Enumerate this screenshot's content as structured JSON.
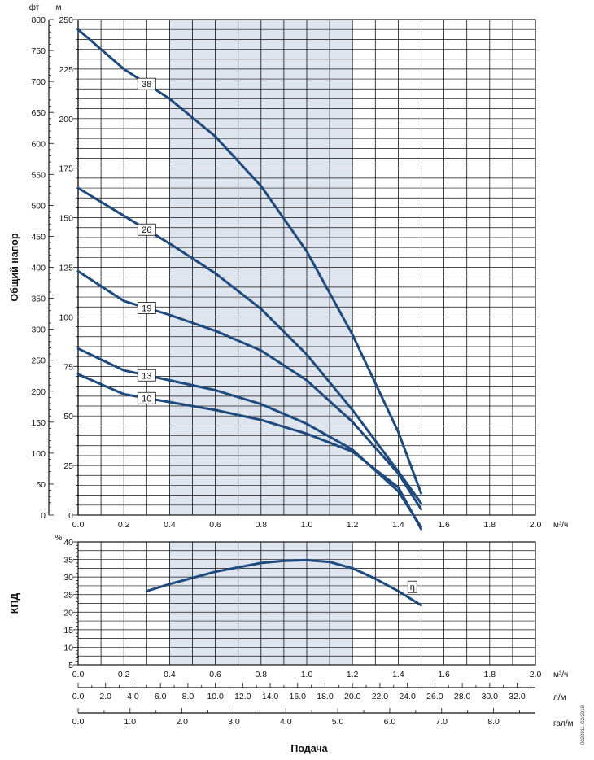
{
  "colors": {
    "curve": "#1f4a7e",
    "band": "#dfe5ee",
    "grid": "#111111"
  },
  "footer": {
    "xlabel": "Подача",
    "doc_id": "0020011 /02/2019"
  },
  "chart_data": [
    {
      "type": "line",
      "ylabel": "Общий напор",
      "y_unit_ft": "фт",
      "y_unit_m": "м",
      "x_unit": "м³/ч",
      "xlim": [
        0,
        2.0
      ],
      "ylim_m": [
        0,
        250
      ],
      "ylim_ft": [
        0,
        800
      ],
      "xticks": [
        "0.0",
        "0.2",
        "0.4",
        "0.6",
        "0.8",
        "1.0",
        "1.2",
        "1.4",
        "1.6",
        "1.8",
        "2.0"
      ],
      "yticks_m": [
        "0",
        "25",
        "50",
        "75",
        "100",
        "125",
        "150",
        "175",
        "200",
        "225",
        "250"
      ],
      "yticks_ft": [
        "0",
        "50",
        "100",
        "150",
        "200",
        "250",
        "300",
        "350",
        "400",
        "450",
        "500",
        "550",
        "600",
        "650",
        "700",
        "750",
        "800"
      ],
      "highlight_range": [
        0.4,
        1.2
      ],
      "series": [
        {
          "name": "38",
          "x": [
            0,
            0.2,
            0.4,
            0.6,
            0.8,
            1.0,
            1.2,
            1.4,
            1.5
          ],
          "y": [
            245,
            225,
            210,
            191,
            166,
            133,
            91,
            42,
            11
          ]
        },
        {
          "name": "26",
          "x": [
            0,
            0.2,
            0.4,
            0.6,
            0.8,
            1.0,
            1.2,
            1.4,
            1.5
          ],
          "y": [
            165,
            151,
            137,
            122,
            104,
            81,
            53,
            22,
            6
          ]
        },
        {
          "name": "19",
          "x": [
            0,
            0.2,
            0.4,
            0.6,
            0.8,
            1.0,
            1.2,
            1.4,
            1.5
          ],
          "y": [
            123,
            108,
            101,
            93,
            83,
            68,
            47,
            21,
            3
          ]
        },
        {
          "name": "13",
          "x": [
            0,
            0.2,
            0.4,
            0.6,
            0.8,
            1.0,
            1.2,
            1.4,
            1.5
          ],
          "y": [
            84,
            73,
            68,
            63,
            56,
            46,
            33,
            12,
            -6
          ]
        },
        {
          "name": "10",
          "x": [
            0,
            0.2,
            0.4,
            0.6,
            0.8,
            1.0,
            1.2,
            1.4,
            1.5
          ],
          "y": [
            71,
            61,
            57,
            53,
            48,
            41,
            32,
            14,
            -7
          ]
        }
      ]
    },
    {
      "type": "line",
      "ylabel": "КПД",
      "y_unit": "%",
      "x_unit": "м³/ч",
      "xlim": [
        0,
        2.0
      ],
      "ylim": [
        5,
        40
      ],
      "xticks": [
        "0.0",
        "0.2",
        "0.4",
        "0.6",
        "0.8",
        "1.0",
        "1.2",
        "1.4",
        "1.6",
        "1.8",
        "2.0"
      ],
      "yticks": [
        "5",
        "10",
        "15",
        "20",
        "25",
        "30",
        "35",
        "40"
      ],
      "highlight_range": [
        0.4,
        1.2
      ],
      "series": [
        {
          "name": "η",
          "x": [
            0.3,
            0.4,
            0.6,
            0.8,
            0.9,
            1.0,
            1.1,
            1.2,
            1.3,
            1.4,
            1.5
          ],
          "y": [
            26,
            28,
            31.5,
            34,
            34.6,
            34.8,
            34.3,
            32.5,
            29.5,
            26,
            22
          ]
        }
      ]
    },
    {
      "type": "axis",
      "unit": "л/м",
      "xlim": [
        0,
        33.333
      ],
      "ticks": [
        "0.0",
        "2.0",
        "4.0",
        "6.0",
        "8.0",
        "10.0",
        "12.0",
        "14.0",
        "16.0",
        "18.0",
        "20.0",
        "22.0",
        "24.0",
        "26.0",
        "28.0",
        "30.0",
        "32.0"
      ]
    },
    {
      "type": "axis",
      "unit": "гал/м",
      "xlim": [
        0,
        8.806
      ],
      "ticks": [
        "0.0",
        "1.0",
        "2.0",
        "3.0",
        "4.0",
        "5.0",
        "6.0",
        "7.0",
        "8.0"
      ]
    }
  ]
}
